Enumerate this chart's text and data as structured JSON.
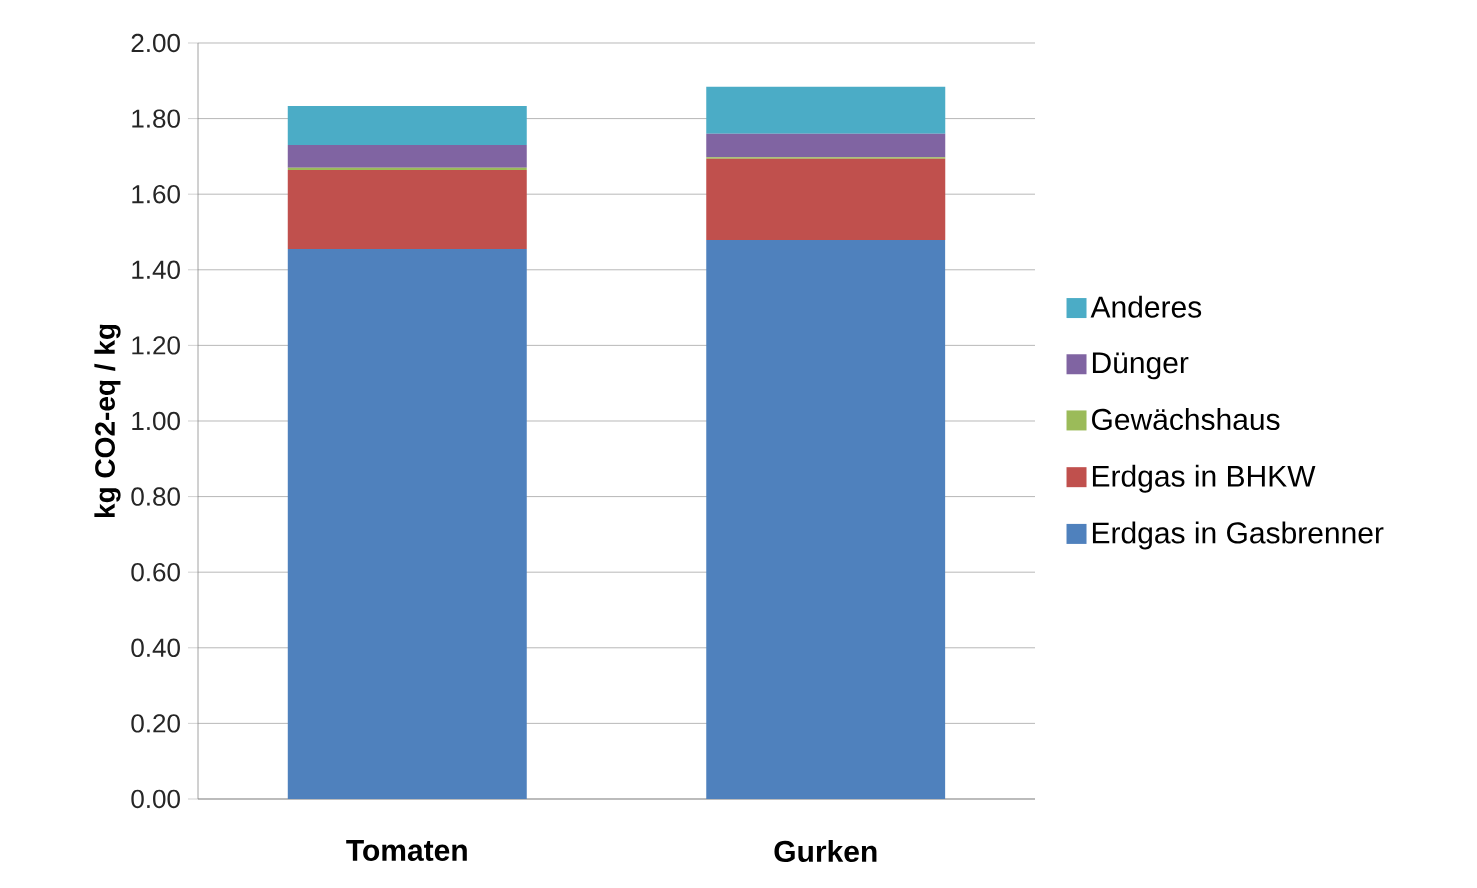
{
  "chart_data": {
    "type": "bar",
    "stacked": true,
    "ylabel": "kg CO2-eq / kg",
    "categories": [
      "Tomaten",
      "Gurken"
    ],
    "series": [
      {
        "name": "Erdgas in Gasbrenner",
        "color": "#4f81bd",
        "values": [
          1.455,
          1.479
        ]
      },
      {
        "name": "Erdgas in BHKW",
        "color": "#c0504d",
        "values": [
          0.209,
          0.215
        ]
      },
      {
        "name": "Gewächshaus",
        "color": "#9bbb59",
        "values": [
          0.006,
          0.004
        ]
      },
      {
        "name": "Dünger",
        "color": "#8064a2",
        "values": [
          0.06,
          0.062
        ]
      },
      {
        "name": "Anderes",
        "color": "#4bacc6",
        "values": [
          0.103,
          0.124
        ]
      }
    ],
    "ylim": [
      0,
      2
    ],
    "yticks": [
      {
        "value": 0,
        "label": "0.00"
      },
      {
        "value": 0.2,
        "label": "0.20"
      },
      {
        "value": 0.4,
        "label": "0.40"
      },
      {
        "value": 0.6,
        "label": "0.60"
      },
      {
        "value": 0.8,
        "label": "0.80"
      },
      {
        "value": 1,
        "label": "1.00"
      },
      {
        "value": 1.2,
        "label": "1.20"
      },
      {
        "value": 1.4,
        "label": "1.40"
      },
      {
        "value": 1.6,
        "label": "1.60"
      },
      {
        "value": 1.8,
        "label": "1.80"
      },
      {
        "value": 2,
        "label": "2.00"
      }
    ],
    "grid": "y",
    "legend": "right"
  }
}
